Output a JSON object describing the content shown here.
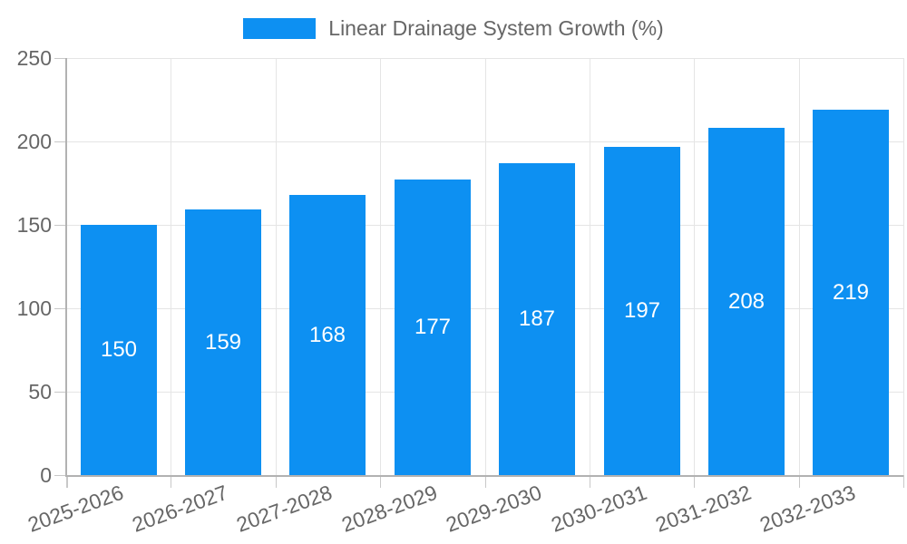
{
  "chart_data": {
    "type": "bar",
    "title": "",
    "legend": {
      "position": "top",
      "label": "Linear Drainage System Growth (%)"
    },
    "categories": [
      "2025-2026",
      "2026-2027",
      "2027-2028",
      "2028-2029",
      "2029-2030",
      "2030-2031",
      "2031-2032",
      "2032-2033"
    ],
    "values": [
      150,
      159,
      168,
      177,
      187,
      197,
      208,
      219
    ],
    "xlabel": "",
    "ylabel": "",
    "ylim": [
      0,
      250
    ],
    "yticks": [
      0,
      50,
      100,
      150,
      200,
      250
    ],
    "grid": true,
    "colors": {
      "bar": "#0d90f2",
      "axis_text": "#666666",
      "gridline": "#e5e5e5",
      "axis_line": "#b2b2b2",
      "tick_mark": "#c8c8c8",
      "value_label": "#ffffff",
      "background": "#ffffff"
    }
  }
}
